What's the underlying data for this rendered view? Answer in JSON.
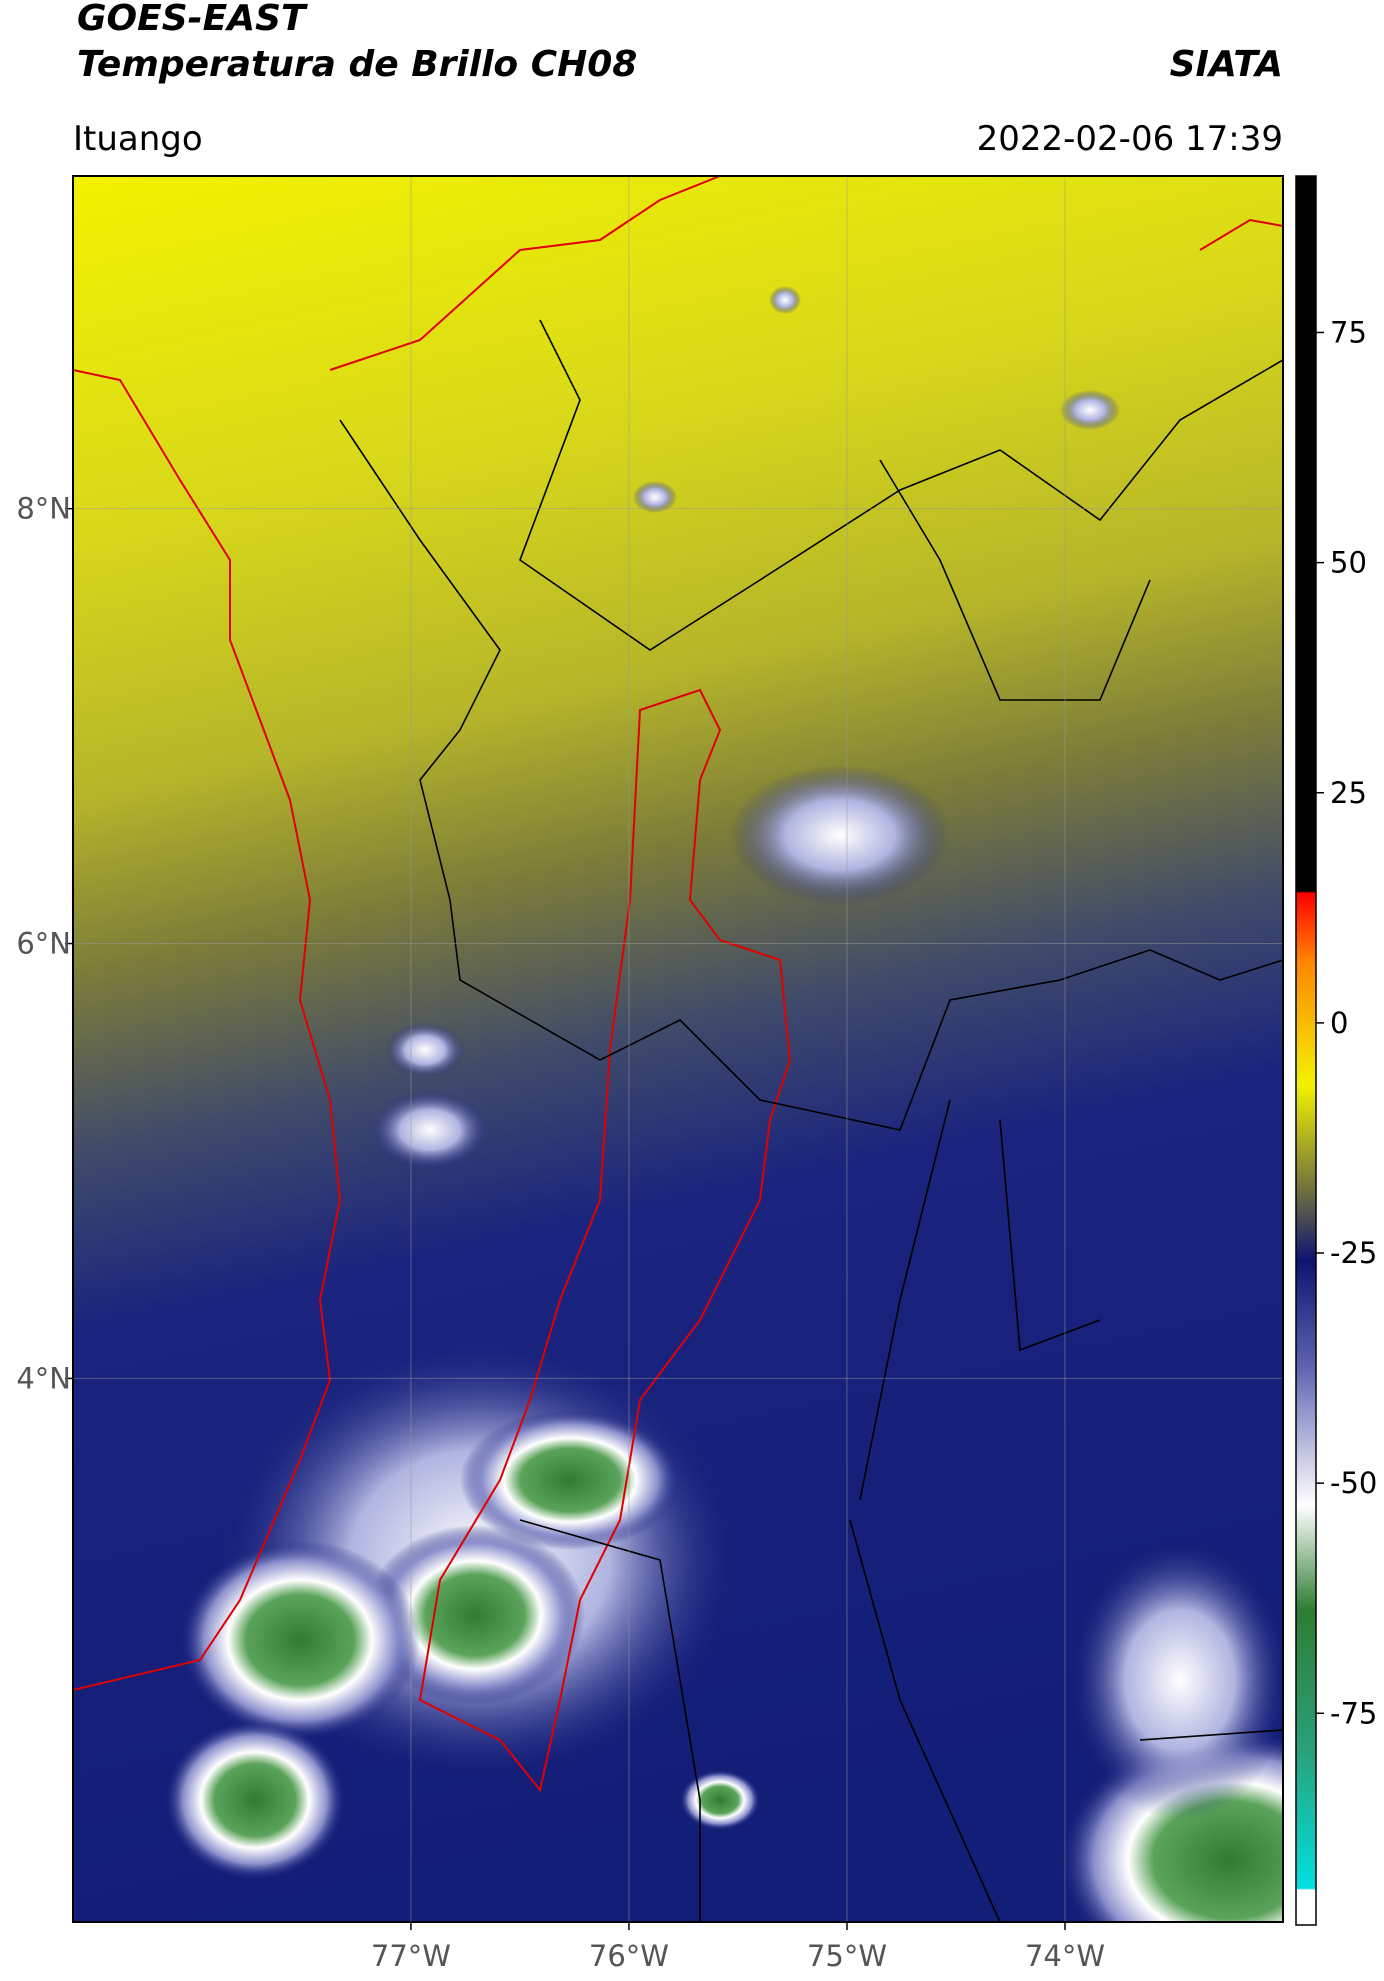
{
  "header": {
    "title_line1": "GOES-EAST",
    "title_line2": "Temperatura de Brillo CH08",
    "brand": "SIATA",
    "location": "Ituango",
    "datetime": "2022-02-06 17:39"
  },
  "map": {
    "xlim": [
      -78.55,
      -73.0
    ],
    "ylim": [
      1.5,
      9.53
    ],
    "xticks": [
      {
        "value": -77,
        "label": "77°W"
      },
      {
        "value": -76,
        "label": "76°W"
      },
      {
        "value": -75,
        "label": "75°W"
      },
      {
        "value": -74,
        "label": "74°W"
      }
    ],
    "yticks": [
      {
        "value": 8,
        "label": "8°N"
      },
      {
        "value": 6,
        "label": "6°N"
      },
      {
        "value": 4,
        "label": "4°N"
      }
    ]
  },
  "colorbar": {
    "lim": [
      -98,
      92
    ],
    "ticks": [
      75,
      50,
      25,
      0,
      -25,
      -50,
      -75
    ]
  }
}
